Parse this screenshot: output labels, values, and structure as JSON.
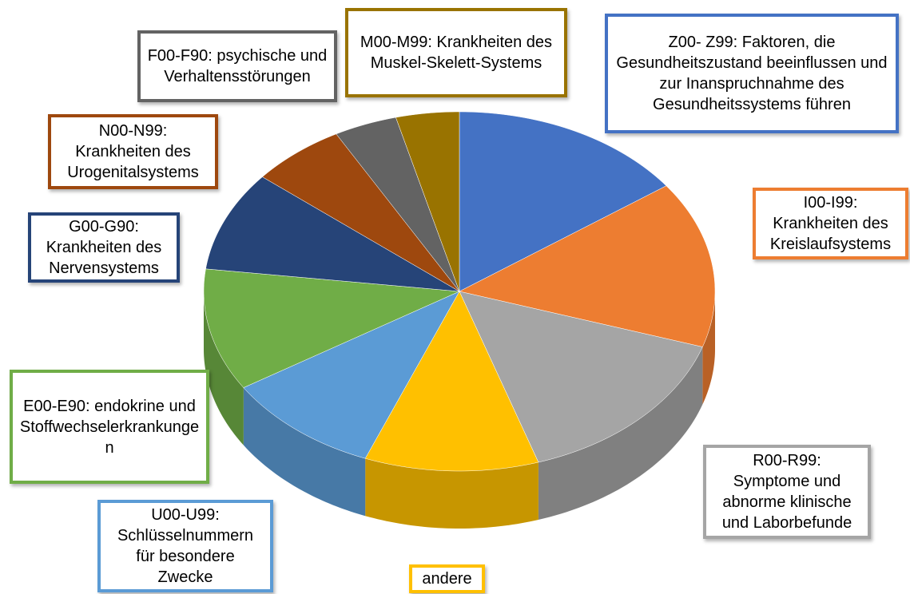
{
  "chart_data": {
    "type": "pie",
    "categories": [
      "Z00- Z99: Faktoren, die Gesundheitszustand beeinflussen und zur Inanspruchnahme des Gesundheitssystems führen",
      "I00-I99: Krankheiten des Kreislaufsystems",
      "R00-R99: Symptome und abnorme klinische und Laborbefunde",
      "andere",
      "U00-U99: Schlüsselnummern für besondere Zwecke",
      "E00-E90: endokrine und Stoffwechselerkrankungen",
      "G00-G90: Krankheiten des Nervensystems",
      "N00-N99: Krankheiten des Urogenitalsystems",
      "F00-F90: psychische und Verhaltensstörungen",
      "M00-M99: Krankheiten des Muskel-Skelett-Systems"
    ],
    "values": [
      15,
      15,
      15,
      11,
      10,
      11,
      9,
      6,
      4,
      4
    ],
    "colors": [
      "#4472c4",
      "#ed7d31",
      "#a5a5a5",
      "#ffc000",
      "#5b9bd5",
      "#70ad47",
      "#264478",
      "#9e480e",
      "#636363",
      "#997300"
    ]
  }
}
